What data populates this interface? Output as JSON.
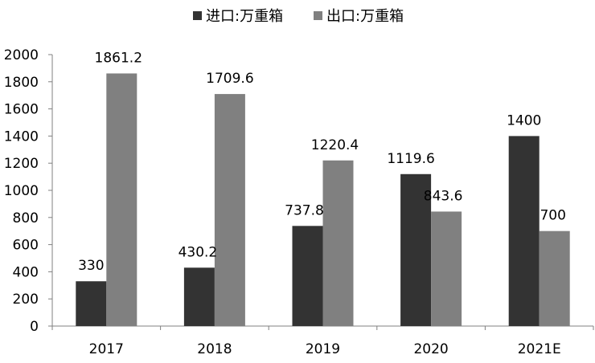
{
  "chart_data": {
    "type": "bar",
    "categories": [
      "2017",
      "2018",
      "2019",
      "2020",
      "2021E"
    ],
    "series": [
      {
        "name": "进口:万重箱",
        "color": "#333333",
        "values": [
          330,
          430.2,
          737.8,
          1119.6,
          1400
        ]
      },
      {
        "name": "出口:万重箱",
        "color": "#808080",
        "values": [
          1861.2,
          1709.6,
          1220.4,
          843.6,
          700
        ]
      }
    ],
    "value_labels": [
      [
        "330",
        "430.2",
        "737.8",
        "1119.6",
        "1400"
      ],
      [
        "1861.2",
        "1709.6",
        "1220.4",
        "843.6",
        "700"
      ]
    ],
    "ylim": [
      0,
      2000
    ],
    "yticks": [
      "0",
      "200",
      "400",
      "600",
      "800",
      "1000",
      "1200",
      "1400",
      "1600",
      "1800",
      "2000"
    ],
    "legend_position": "top-center",
    "grid": false
  }
}
